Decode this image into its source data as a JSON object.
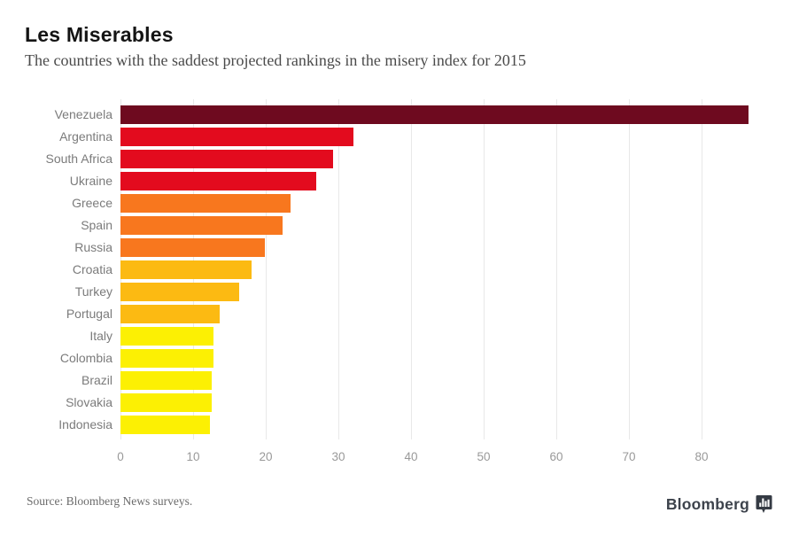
{
  "header": {
    "title": "Les Miserables",
    "subtitle": "The countries with the saddest projected rankings in the misery index for 2015"
  },
  "chart_data": {
    "type": "bar",
    "orientation": "horizontal",
    "title": "Les Miserables",
    "subtitle": "The countries with the saddest projected rankings in the misery index for 2015",
    "categories": [
      "Venezuela",
      "Argentina",
      "South Africa",
      "Ukraine",
      "Greece",
      "Spain",
      "Russia",
      "Croatia",
      "Turkey",
      "Portugal",
      "Italy",
      "Colombia",
      "Brazil",
      "Slovakia",
      "Indonesia"
    ],
    "values": [
      86.5,
      32.1,
      29.3,
      27.0,
      23.4,
      22.3,
      19.9,
      18.1,
      16.3,
      13.6,
      12.8,
      12.8,
      12.5,
      12.6,
      12.3
    ],
    "bar_colors": [
      "#6e0a1f",
      "#e30b1e",
      "#e30b1e",
      "#e30b1e",
      "#f8771e",
      "#f8771e",
      "#f8771e",
      "#fcba12",
      "#fcba12",
      "#fcba12",
      "#fcf003",
      "#fcf003",
      "#fcf003",
      "#fcf003",
      "#fcf003"
    ],
    "x_ticks": [
      0,
      10,
      20,
      30,
      40,
      50,
      60,
      70,
      80
    ],
    "xlim": [
      0,
      88
    ],
    "grid": "vertical-only",
    "gridline_color": "#e8e8e8",
    "legend": "none",
    "xlabel": "",
    "ylabel": ""
  },
  "footer": {
    "source": "Source: Bloomberg News surveys.",
    "brand": "Bloomberg",
    "brand_icon": "bar-chart-badge-icon"
  }
}
